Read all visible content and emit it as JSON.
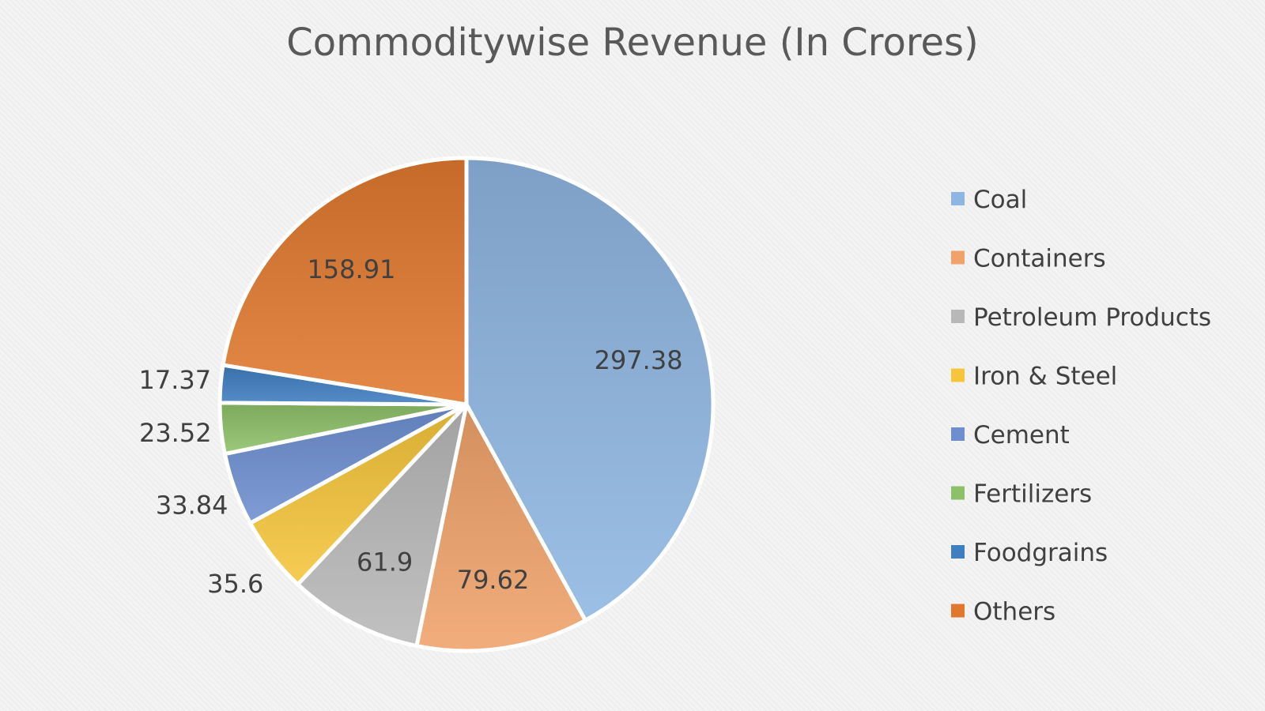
{
  "chart_data": {
    "type": "pie",
    "title": "Commoditywise Revenue (In Crores)",
    "legend_position": "right",
    "categories": [
      "Coal",
      "Containers",
      "Petroleum Products",
      "Iron & Steel",
      "Cement",
      "Fertilizers",
      "Foodgrains",
      "Others"
    ],
    "values": [
      297.38,
      79.62,
      61.9,
      35.6,
      33.84,
      23.52,
      17.37,
      158.91
    ],
    "data_labels": [
      "297.38",
      "79.62",
      "61.9",
      "35.6",
      "33.84",
      "23.52",
      "17.37",
      "158.91"
    ],
    "colors": [
      "#8fb6e2",
      "#f0a26a",
      "#b8b8b8",
      "#f6c53a",
      "#6d8fd0",
      "#8ec06a",
      "#3f7ec0",
      "#e0792e"
    ]
  }
}
